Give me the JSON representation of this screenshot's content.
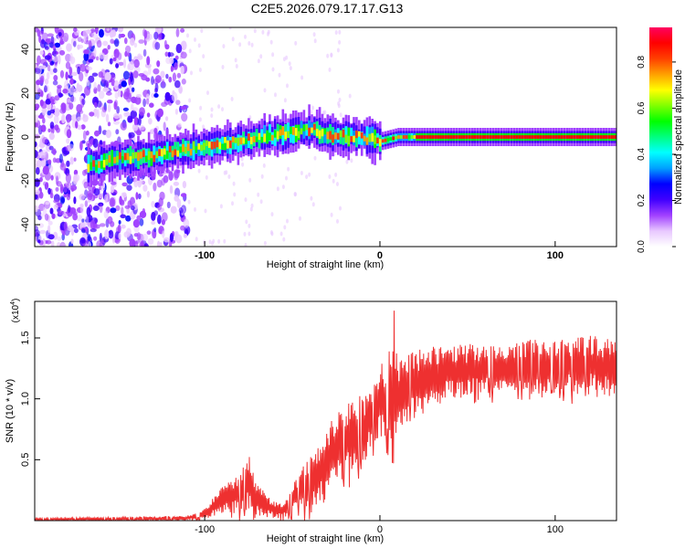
{
  "title": "C2E5.2026.079.17.17.G13",
  "chart_data": [
    {
      "type": "heatmap",
      "name": "spectrogram",
      "xlabel": "Height of straight line (km)",
      "ylabel": "Frequency (Hz)",
      "xlim": [
        -197,
        135
      ],
      "ylim": [
        -50,
        50
      ],
      "xticks": [
        -100,
        0,
        100
      ],
      "xtick_labels": [
        "-100",
        "0",
        "100"
      ],
      "yticks": [
        -40,
        -20,
        0,
        20,
        40
      ],
      "ytick_labels": [
        "-40",
        "-20",
        "0",
        "20",
        "40"
      ],
      "noise_region_end_km": -110,
      "ridge_points": [
        {
          "x": -165,
          "y": -13
        },
        {
          "x": -150,
          "y": -10
        },
        {
          "x": -135,
          "y": -9
        },
        {
          "x": -120,
          "y": -7
        },
        {
          "x": -105,
          "y": -5
        },
        {
          "x": -90,
          "y": -3
        },
        {
          "x": -75,
          "y": -1
        },
        {
          "x": -60,
          "y": 1
        },
        {
          "x": -50,
          "y": 2
        },
        {
          "x": -40,
          "y": 4
        },
        {
          "x": -30,
          "y": 1
        },
        {
          "x": -20,
          "y": 0
        },
        {
          "x": -10,
          "y": 0
        },
        {
          "x": 0,
          "y": -2
        },
        {
          "x": 10,
          "y": 0
        },
        {
          "x": 20,
          "y": 0
        },
        {
          "x": 60,
          "y": 0
        },
        {
          "x": 100,
          "y": 0
        },
        {
          "x": 135,
          "y": 0
        }
      ],
      "colorbar": {
        "label": "Normalized spectral amplitude",
        "range": [
          0.0,
          0.95
        ],
        "ticks": [
          0.0,
          0.2,
          0.4,
          0.6,
          0.8
        ],
        "tick_labels": [
          "0.0",
          "0.2",
          "0.4",
          "0.6",
          "0.8"
        ],
        "colors": [
          "#ffffff",
          "#e8c8ff",
          "#a040ff",
          "#4000ff",
          "#0000ff",
          "#00a0ff",
          "#00ffff",
          "#00ff80",
          "#00ff00",
          "#80ff00",
          "#ffff00",
          "#ffa000",
          "#ff4000",
          "#ff0000",
          "#ff0060"
        ]
      }
    },
    {
      "type": "line",
      "name": "snr",
      "xlabel": "Height of straight line (km)",
      "ylabel": "SNR (10 * v/v)",
      "multiplier": "(x10",
      "multiplier_exp": "4",
      "multiplier_close": ")",
      "xlim": [
        -197,
        135
      ],
      "ylim": [
        0.0,
        1.8
      ],
      "xticks": [
        -100,
        0,
        100
      ],
      "xtick_labels": [
        "-100",
        "0",
        "100"
      ],
      "yticks": [
        0.5,
        1.0,
        1.5
      ],
      "ytick_labels": [
        "0.5",
        "1.0",
        "1.5"
      ],
      "color": "#ee3030",
      "envelope": {
        "x": [
          -197,
          -150,
          -110,
          -100,
          -90,
          -80,
          -75,
          -70,
          -60,
          -55,
          -50,
          -40,
          -35,
          -30,
          -25,
          -20,
          -15,
          -10,
          -5,
          0,
          5,
          8,
          10,
          15,
          20,
          30,
          40,
          50,
          60,
          80,
          100,
          120,
          135
        ],
        "lo": [
          0.0,
          0.0,
          0.0,
          0.02,
          0.05,
          0.06,
          0.08,
          0.04,
          0.02,
          0.02,
          0.05,
          0.08,
          0.15,
          0.2,
          0.3,
          0.35,
          0.4,
          0.45,
          0.6,
          0.7,
          0.55,
          0.4,
          0.7,
          0.8,
          0.85,
          0.95,
          1.0,
          1.0,
          1.05,
          1.05,
          1.05,
          1.05,
          1.0
        ],
        "hi": [
          0.02,
          0.03,
          0.04,
          0.1,
          0.28,
          0.4,
          0.55,
          0.3,
          0.15,
          0.15,
          0.3,
          0.55,
          0.65,
          0.75,
          0.9,
          0.95,
          1.0,
          1.05,
          1.1,
          1.3,
          1.4,
          1.8,
          1.3,
          1.35,
          1.4,
          1.45,
          1.45,
          1.45,
          1.45,
          1.48,
          1.5,
          1.52,
          1.5
        ]
      }
    }
  ]
}
